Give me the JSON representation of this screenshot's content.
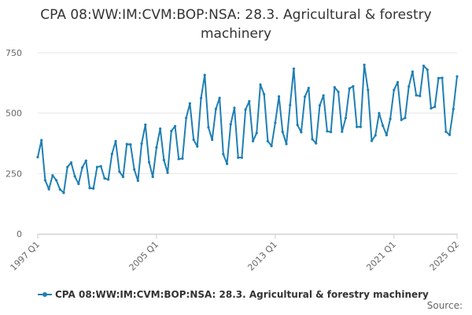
{
  "chart_data": {
    "type": "line",
    "title": "CPA 08:WW:IM:CVM:BOP:NSA: 28.3. Agricultural & forestry machinery",
    "ylim": [
      0,
      750
    ],
    "yticks": [
      "0",
      "250",
      "500",
      "750"
    ],
    "xticks": [
      "1997 Q1",
      "2005 Q1",
      "2013 Q1",
      "2021 Q1",
      "2025 Q2"
    ],
    "grid": true,
    "legend_position": "bottom",
    "series": [
      {
        "name": "CPA 08:WW:IM:CVM:BOP:NSA: 28.3. Agricultural & forestry machinery",
        "color": "#1f7fb4",
        "x": [
          "1997 Q1",
          "1997 Q2",
          "1997 Q3",
          "1997 Q4",
          "1998 Q1",
          "1998 Q2",
          "1998 Q3",
          "1998 Q4",
          "1999 Q1",
          "1999 Q2",
          "1999 Q3",
          "1999 Q4",
          "2000 Q1",
          "2000 Q2",
          "2000 Q3",
          "2000 Q4",
          "2001 Q1",
          "2001 Q2",
          "2001 Q3",
          "2001 Q4",
          "2002 Q1",
          "2002 Q2",
          "2002 Q3",
          "2002 Q4",
          "2003 Q1",
          "2003 Q2",
          "2003 Q3",
          "2003 Q4",
          "2004 Q1",
          "2004 Q2",
          "2004 Q3",
          "2004 Q4",
          "2005 Q1",
          "2005 Q2",
          "2005 Q3",
          "2005 Q4",
          "2006 Q1",
          "2006 Q2",
          "2006 Q3",
          "2006 Q4",
          "2007 Q1",
          "2007 Q2",
          "2007 Q3",
          "2007 Q4",
          "2008 Q1",
          "2008 Q2",
          "2008 Q3",
          "2008 Q4",
          "2009 Q1",
          "2009 Q2",
          "2009 Q3",
          "2009 Q4",
          "2010 Q1",
          "2010 Q2",
          "2010 Q3",
          "2010 Q4",
          "2011 Q1",
          "2011 Q2",
          "2011 Q3",
          "2011 Q4",
          "2012 Q1",
          "2012 Q2",
          "2012 Q3",
          "2012 Q4",
          "2013 Q1",
          "2013 Q2",
          "2013 Q3",
          "2013 Q4",
          "2014 Q1",
          "2014 Q2",
          "2014 Q3",
          "2014 Q4",
          "2015 Q1",
          "2015 Q2",
          "2015 Q3",
          "2015 Q4",
          "2016 Q1",
          "2016 Q2",
          "2016 Q3",
          "2016 Q4",
          "2017 Q1",
          "2017 Q2",
          "2017 Q3",
          "2017 Q4",
          "2018 Q1",
          "2018 Q2",
          "2018 Q3",
          "2018 Q4",
          "2019 Q1",
          "2019 Q2",
          "2019 Q3",
          "2019 Q4",
          "2020 Q1",
          "2020 Q2",
          "2020 Q3",
          "2020 Q4",
          "2021 Q1",
          "2021 Q2",
          "2021 Q3",
          "2021 Q4",
          "2022 Q1",
          "2022 Q2",
          "2022 Q3",
          "2022 Q4",
          "2023 Q1",
          "2023 Q2",
          "2023 Q3",
          "2023 Q4",
          "2024 Q1",
          "2024 Q2",
          "2024 Q3",
          "2024 Q4",
          "2025 Q1",
          "2025 Q2"
        ],
        "values": [
          318,
          388,
          222,
          185,
          242,
          222,
          184,
          170,
          277,
          295,
          238,
          207,
          275,
          303,
          190,
          188,
          277,
          280,
          230,
          225,
          331,
          384,
          258,
          236,
          372,
          370,
          267,
          220,
          374,
          452,
          297,
          236,
          358,
          436,
          306,
          253,
          426,
          446,
          310,
          312,
          480,
          540,
          390,
          362,
          562,
          658,
          441,
          390,
          517,
          563,
          330,
          290,
          454,
          522,
          316,
          316,
          515,
          549,
          384,
          418,
          618,
          578,
          384,
          364,
          460,
          569,
          422,
          372,
          533,
          684,
          451,
          421,
          568,
          604,
          392,
          375,
          532,
          573,
          425,
          422,
          607,
          588,
          423,
          480,
          602,
          611,
          443,
          443,
          700,
          596,
          385,
          408,
          500,
          448,
          409,
          476,
          596,
          628,
          472,
          480,
          610,
          672,
          574,
          571,
          696,
          680,
          520,
          526,
          645,
          646,
          423,
          410,
          517,
          652
        ]
      }
    ]
  },
  "footer": {
    "source_label": "Source:"
  }
}
